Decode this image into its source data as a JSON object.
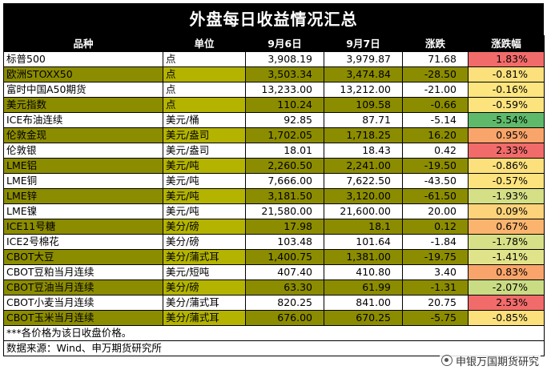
{
  "title": "外盘每日收益情况汇总",
  "columns": [
    "品种",
    "单位",
    "9月6日",
    "9月7日",
    "涨跌",
    "涨跌幅"
  ],
  "colors": {
    "header_bg": "#000000",
    "olive_row": "#8c8c00",
    "olive_unit": "#b3b300",
    "pct_strong_up": "#f26b6b",
    "pct_up": "#f9a46a",
    "pct_mild_up": "#fbd27a",
    "pct_flat": "#fde57f",
    "pct_mild_down": "#e3e48a",
    "pct_down": "#c3dd84",
    "pct_strong_down": "#5eba6a"
  },
  "rows": [
    {
      "name": "标普500",
      "unit": "点",
      "d1": "3,908.19",
      "d2": "3,979.87",
      "chg": "71.68",
      "pct": "1.83%",
      "style": "white",
      "pct_color": "#f26b6b"
    },
    {
      "name": "欧洲STOXX50",
      "unit": "点",
      "d1": "3,503.34",
      "d2": "3,474.84",
      "chg": "-28.50",
      "pct": "-0.81%",
      "style": "olive",
      "pct_color": "#fbe07c"
    },
    {
      "name": "富时中国A50期货",
      "unit": "点",
      "d1": "13,233.00",
      "d2": "13,212.00",
      "chg": "-21.00",
      "pct": "-0.16%",
      "style": "white",
      "pct_color": "#fde57f"
    },
    {
      "name": "美元指数",
      "unit": "点",
      "d1": "110.24",
      "d2": "109.58",
      "chg": "-0.66",
      "pct": "-0.59%",
      "style": "olive",
      "pct_color": "#fde37e"
    },
    {
      "name": "ICE布油连续",
      "unit": "美元/桶",
      "d1": "92.85",
      "d2": "87.71",
      "chg": "-5.14",
      "pct": "-5.54%",
      "style": "white",
      "pct_color": "#5eba6a"
    },
    {
      "name": "伦敦金现",
      "unit": "美元/盎司",
      "d1": "1,702.05",
      "d2": "1,718.25",
      "chg": "16.20",
      "pct": "0.95%",
      "style": "olive",
      "pct_color": "#f9a46a"
    },
    {
      "name": "伦敦银",
      "unit": "美元/盎司",
      "d1": "18.01",
      "d2": "18.43",
      "chg": "0.42",
      "pct": "2.33%",
      "style": "white",
      "pct_color": "#f26b6b"
    },
    {
      "name": "LME铝",
      "unit": "美元/吨",
      "d1": "2,260.50",
      "d2": "2,241.00",
      "chg": "-19.50",
      "pct": "-0.86%",
      "style": "olive",
      "pct_color": "#fbe07c"
    },
    {
      "name": "LME铜",
      "unit": "美元/吨",
      "d1": "7,666.00",
      "d2": "7,622.50",
      "chg": "-43.50",
      "pct": "-0.57%",
      "style": "white",
      "pct_color": "#fde37e"
    },
    {
      "name": "LME锌",
      "unit": "美元/吨",
      "d1": "3,181.50",
      "d2": "3,120.00",
      "chg": "-61.50",
      "pct": "-1.93%",
      "style": "olive",
      "pct_color": "#d4df86"
    },
    {
      "name": "LME镍",
      "unit": "美元/吨",
      "d1": "21,580.00",
      "d2": "21,600.00",
      "chg": "20.00",
      "pct": "0.09%",
      "style": "white",
      "pct_color": "#fcd27a"
    },
    {
      "name": "ICE11号糖",
      "unit": "美分/磅",
      "d1": "17.98",
      "d2": "18.1",
      "chg": "0.12",
      "pct": "0.67%",
      "style": "olive",
      "pct_color": "#fbb46e"
    },
    {
      "name": "ICE2号棉花",
      "unit": "美分/磅",
      "d1": "103.48",
      "d2": "101.64",
      "chg": "-1.84",
      "pct": "-1.78%",
      "style": "white",
      "pct_color": "#d8e087"
    },
    {
      "name": "CBOT大豆",
      "unit": "美分/蒲式耳",
      "d1": "1,400.75",
      "d2": "1,381.00",
      "chg": "-19.75",
      "pct": "-1.41%",
      "style": "olive",
      "pct_color": "#e1e38a"
    },
    {
      "name": "CBOT豆粕当月连续",
      "unit": "美元/短吨",
      "d1": "407.40",
      "d2": "410.80",
      "chg": "3.40",
      "pct": "0.83%",
      "style": "white",
      "pct_color": "#f9a46a"
    },
    {
      "name": "CBOT豆油当月连续",
      "unit": "美分/磅",
      "d1": "63.30",
      "d2": "61.99",
      "chg": "-1.31",
      "pct": "-2.07%",
      "style": "olive",
      "pct_color": "#c9dc84"
    },
    {
      "name": "CBOT小麦当月连续",
      "unit": "美分/蒲式耳",
      "d1": "820.25",
      "d2": "841.00",
      "chg": "20.75",
      "pct": "2.53%",
      "style": "white",
      "pct_color": "#f26b6b"
    },
    {
      "name": "CBOT玉米当月连续",
      "unit": "美分/蒲式耳",
      "d1": "676.00",
      "d2": "670.25",
      "chg": "-5.75",
      "pct": "-0.85%",
      "style": "olive",
      "pct_color": "#fbe07c"
    }
  ],
  "footnote": "***各价格为该日收盘价格。",
  "source": "数据来源：Wind、申万期货研究所",
  "watermark": "申银万国期货研究",
  "watermark_icon": "wechat-channel-icon"
}
